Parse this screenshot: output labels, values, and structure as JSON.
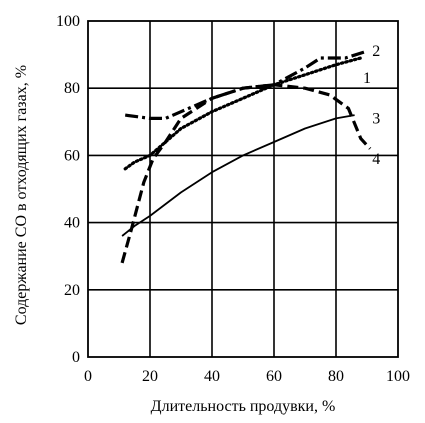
{
  "chart_data": {
    "type": "line",
    "xlabel": "Длительность продувки, %",
    "ylabel": "Содержание СО в отходящих газах, %",
    "xlim": [
      0,
      100
    ],
    "ylim": [
      0,
      100
    ],
    "x_ticks": [
      0,
      20,
      40,
      60,
      80,
      100
    ],
    "y_ticks": [
      0,
      20,
      40,
      60,
      80,
      100
    ],
    "x_tick_labels": [
      "0",
      "20",
      "40",
      "60",
      "80",
      "100"
    ],
    "y_tick_labels": [
      "0",
      "20",
      "40",
      "60",
      "80",
      "100"
    ],
    "grid": true,
    "series": [
      {
        "name": "1",
        "style": "dotted",
        "points": [
          [
            12,
            56
          ],
          [
            15,
            58
          ],
          [
            20,
            60
          ],
          [
            25,
            64
          ],
          [
            30,
            68
          ],
          [
            40,
            73
          ],
          [
            50,
            77
          ],
          [
            60,
            81
          ],
          [
            70,
            84
          ],
          [
            80,
            87
          ],
          [
            88,
            89
          ]
        ]
      },
      {
        "name": "2",
        "style": "dash-dot",
        "points": [
          [
            12,
            72
          ],
          [
            20,
            71
          ],
          [
            25,
            71
          ],
          [
            30,
            73
          ],
          [
            40,
            77
          ],
          [
            50,
            80
          ],
          [
            60,
            81
          ],
          [
            70,
            86
          ],
          [
            75,
            89
          ],
          [
            83,
            89
          ],
          [
            90,
            91
          ]
        ]
      },
      {
        "name": "3",
        "style": "solid",
        "points": [
          [
            11,
            36
          ],
          [
            15,
            39
          ],
          [
            20,
            42
          ],
          [
            30,
            49
          ],
          [
            40,
            55
          ],
          [
            50,
            60
          ],
          [
            60,
            64
          ],
          [
            70,
            68
          ],
          [
            80,
            71
          ],
          [
            86,
            72
          ]
        ]
      },
      {
        "name": "4",
        "style": "dashed",
        "points": [
          [
            11,
            28
          ],
          [
            14,
            38
          ],
          [
            18,
            52
          ],
          [
            21,
            59
          ],
          [
            25,
            64
          ],
          [
            30,
            71
          ],
          [
            40,
            77
          ],
          [
            50,
            80
          ],
          [
            60,
            81
          ],
          [
            70,
            80
          ],
          [
            78,
            78
          ],
          [
            84,
            74
          ],
          [
            88,
            65
          ],
          [
            91,
            62
          ]
        ]
      }
    ],
    "series_label_positions": {
      "1": [
        90,
        83
      ],
      "2": [
        93,
        91
      ],
      "3": [
        93,
        71
      ],
      "4": [
        93,
        59
      ]
    }
  }
}
